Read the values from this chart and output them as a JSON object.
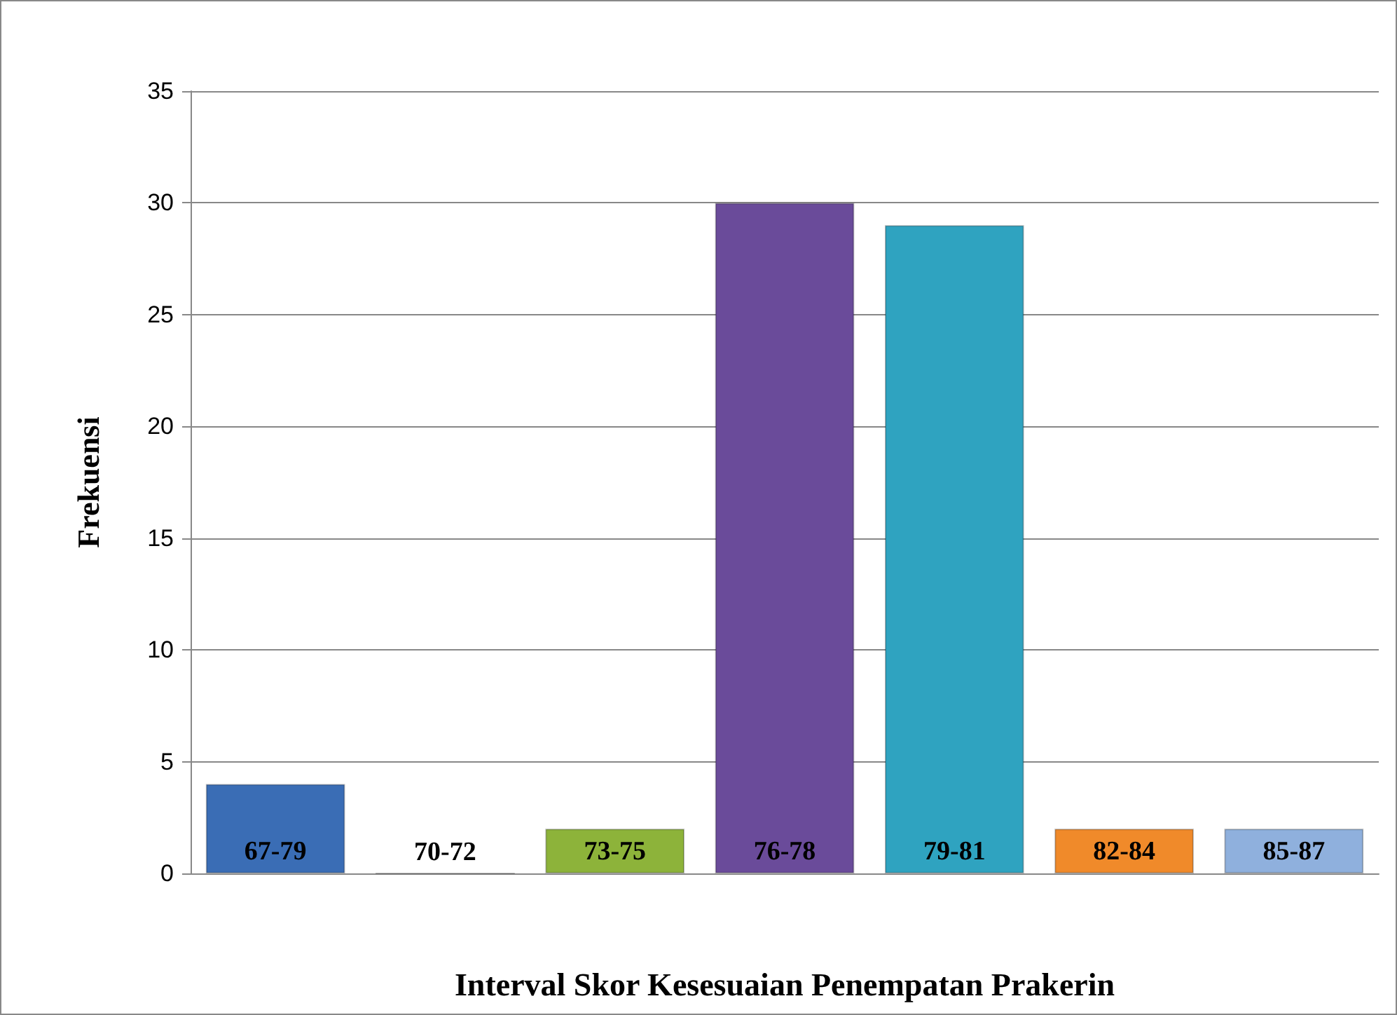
{
  "chart_data": {
    "type": "bar",
    "xlabel": "Interval Skor Kesesuaian Penempatan Prakerin",
    "ylabel": "Frekuensi",
    "categories": [
      "67-79",
      "70-72",
      "73-75",
      "76-78",
      "79-81",
      "82-84",
      "85-87"
    ],
    "values": [
      4,
      0,
      2,
      30,
      29,
      2,
      2
    ],
    "colors": [
      "#3a6db5",
      null,
      "#8db33a",
      "#6a4b9a",
      "#2fa3c0",
      "#f08a2a",
      "#8fb0dd"
    ],
    "ylim": [
      0,
      35
    ],
    "yticks": [
      0,
      5,
      10,
      15,
      20,
      25,
      30,
      35
    ],
    "grid": "y",
    "tick_labels": "y"
  }
}
